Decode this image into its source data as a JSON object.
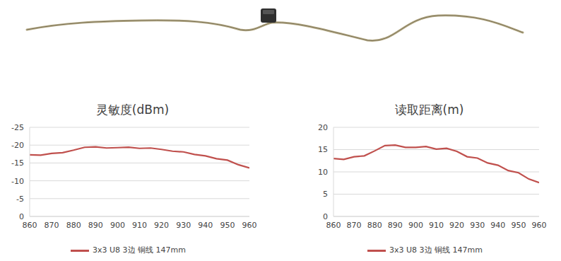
{
  "chart_data": [
    {
      "type": "line",
      "title": "灵敏度(dBm)",
      "x": [
        860,
        865,
        870,
        875,
        880,
        885,
        890,
        895,
        900,
        905,
        910,
        915,
        920,
        925,
        930,
        935,
        940,
        945,
        950,
        955,
        960
      ],
      "series": [
        {
          "name": "3x3 U8 3边 铜线 147mm",
          "color": "#c0504d",
          "values": [
            -17.3,
            -17.2,
            -17.7,
            -17.9,
            -18.6,
            -19.4,
            -19.5,
            -19.2,
            -19.3,
            -19.4,
            -19.1,
            -19.2,
            -18.8,
            -18.3,
            -18.1,
            -17.4,
            -17.0,
            -16.2,
            -15.8,
            -14.5,
            -13.6
          ]
        }
      ],
      "xlim": [
        860,
        960
      ],
      "xticks": [
        860,
        870,
        880,
        890,
        900,
        910,
        920,
        930,
        940,
        950,
        960
      ],
      "ylim": [
        0,
        -25
      ],
      "yticks": [
        -25,
        -20,
        -15,
        -10,
        -5,
        0
      ],
      "grid": true
    },
    {
      "type": "line",
      "title": "读取距离(m)",
      "x": [
        860,
        865,
        870,
        875,
        880,
        885,
        890,
        895,
        900,
        905,
        910,
        915,
        920,
        925,
        930,
        935,
        940,
        945,
        950,
        955,
        960
      ],
      "series": [
        {
          "name": "3x3 U8 3边 铜线 147mm",
          "color": "#c0504d",
          "values": [
            13.0,
            12.8,
            13.4,
            13.6,
            14.7,
            15.9,
            16.0,
            15.5,
            15.5,
            15.7,
            15.1,
            15.3,
            14.6,
            13.4,
            13.1,
            12.0,
            11.5,
            10.3,
            9.8,
            8.4,
            7.6
          ]
        }
      ],
      "xlim": [
        860,
        960
      ],
      "xticks": [
        860,
        870,
        880,
        890,
        900,
        910,
        920,
        930,
        940,
        950,
        960
      ],
      "ylim": [
        0,
        20
      ],
      "yticks": [
        0,
        5,
        10,
        15,
        20
      ],
      "grid": true
    }
  ]
}
